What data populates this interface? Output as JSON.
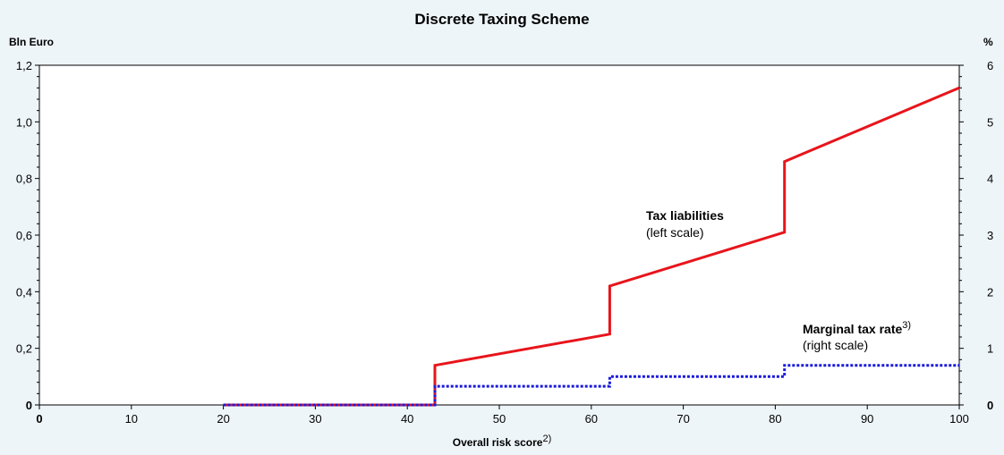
{
  "chart_data": {
    "type": "line",
    "title": "Discrete Taxing Scheme",
    "xlabel": "Overall risk score",
    "xlabel_superscript": "2)",
    "xlim": [
      0,
      100
    ],
    "x_ticks": [
      0,
      10,
      20,
      30,
      40,
      50,
      60,
      70,
      80,
      90,
      100
    ],
    "x_tick_labels": [
      "0",
      "10",
      "20",
      "30",
      "40",
      "50",
      "60",
      "70",
      "80",
      "90",
      "100"
    ],
    "y_left": {
      "unit_label": "Bln Euro",
      "lim": [
        0,
        1.2
      ],
      "ticks": [
        0,
        0.2,
        0.4,
        0.6,
        0.8,
        1.0,
        1.2
      ],
      "tick_labels": [
        "0",
        "0,2",
        "0,4",
        "0,6",
        "0,8",
        "1,0",
        "1,2"
      ]
    },
    "y_right": {
      "unit_label": "%",
      "lim": [
        0,
        6
      ],
      "ticks": [
        0,
        1,
        2,
        3,
        4,
        5,
        6
      ],
      "tick_labels": [
        "0",
        "1",
        "2",
        "3",
        "4",
        "5",
        "6"
      ]
    },
    "series": [
      {
        "name": "Tax liabilities",
        "note": "(left scale)",
        "axis": "left",
        "color": "#e8141b",
        "style": "solid",
        "x": [
          20,
          43,
          43,
          62,
          62,
          81,
          81,
          100
        ],
        "y": [
          0,
          0,
          0.14,
          0.25,
          0.42,
          0.61,
          0.86,
          1.12
        ]
      },
      {
        "name": "Marginal tax rate",
        "name_superscript": "3)",
        "note": "(right scale)",
        "axis": "right",
        "color": "#1a1adb",
        "style": "dotted",
        "x": [
          20,
          43,
          43,
          62,
          62,
          81,
          81,
          100
        ],
        "y": [
          0,
          0,
          0.33,
          0.33,
          0.5,
          0.5,
          0.7,
          0.7
        ]
      }
    ],
    "grid": false,
    "colors": {
      "background": "#eef5f9",
      "plot_area": "#ffffff"
    }
  }
}
